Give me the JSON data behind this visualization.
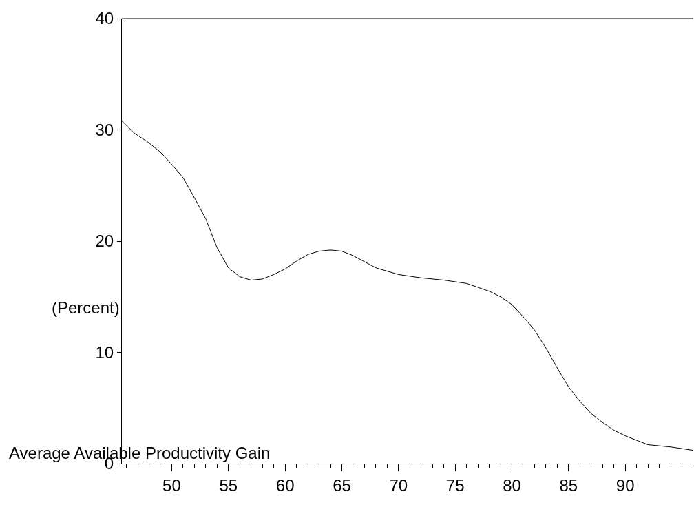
{
  "chart_data": {
    "type": "line",
    "title": "Average Available Productivity Gain",
    "ylabel": "(Percent)",
    "x": [
      45.6,
      46.7,
      47.9,
      49,
      50,
      51,
      52,
      53,
      54,
      55,
      56,
      57,
      58,
      59,
      60,
      61,
      62,
      63,
      64,
      65,
      66,
      68,
      70,
      72,
      74,
      76,
      78,
      79,
      80,
      81,
      82,
      83,
      84,
      85,
      86,
      87,
      88,
      89,
      90,
      92,
      94,
      96
    ],
    "series": [
      {
        "color": "#000000",
        "values": [
          30.8,
          29.7,
          28.9,
          28.0,
          26.9,
          25.7,
          23.9,
          22.0,
          19.4,
          17.6,
          16.8,
          16.5,
          16.6,
          17.0,
          17.5,
          18.2,
          18.8,
          19.1,
          19.2,
          19.1,
          18.7,
          17.6,
          17.0,
          16.7,
          16.5,
          16.2,
          15.5,
          15.0,
          14.3,
          13.2,
          12.0,
          10.4,
          8.6,
          6.9,
          5.6,
          4.5,
          3.7,
          3.0,
          2.5,
          1.7,
          1.5,
          1.2
        ]
      }
    ],
    "xlim": [
      45.6,
      96
    ],
    "ylim": [
      0,
      40
    ],
    "xticks": [
      {
        "value": 46,
        "label": null
      },
      {
        "value": 47,
        "label": null
      },
      {
        "value": 48,
        "label": null
      },
      {
        "value": 49,
        "label": null
      },
      50,
      {
        "value": 51,
        "label": null
      },
      {
        "value": 52,
        "label": null
      },
      {
        "value": 53,
        "label": null
      },
      {
        "value": 54,
        "label": null
      },
      55,
      {
        "value": 56,
        "label": null
      },
      {
        "value": 57,
        "label": null
      },
      {
        "value": 58,
        "label": null
      },
      {
        "value": 59,
        "label": null
      },
      60,
      {
        "value": 61,
        "label": null
      },
      {
        "value": 62,
        "label": null
      },
      {
        "value": 63,
        "label": null
      },
      {
        "value": 64,
        "label": null
      },
      65,
      {
        "value": 66,
        "label": null
      },
      {
        "value": 67,
        "label": null
      },
      {
        "value": 68,
        "label": null
      },
      {
        "value": 69,
        "label": null
      },
      70,
      {
        "value": 71,
        "label": null
      },
      {
        "value": 72,
        "label": null
      },
      {
        "value": 73,
        "label": null
      },
      {
        "value": 74,
        "label": null
      },
      75,
      {
        "value": 76,
        "label": null
      },
      {
        "value": 77,
        "label": null
      },
      {
        "value": 78,
        "label": null
      },
      {
        "value": 79,
        "label": null
      },
      80,
      {
        "value": 81,
        "label": null
      },
      {
        "value": 82,
        "label": null
      },
      {
        "value": 83,
        "label": null
      },
      {
        "value": 84,
        "label": null
      },
      85,
      {
        "value": 86,
        "label": null
      },
      {
        "value": 87,
        "label": null
      },
      {
        "value": 88,
        "label": null
      },
      {
        "value": 89,
        "label": null
      },
      90,
      {
        "value": 91,
        "label": null
      },
      {
        "value": 92,
        "label": null
      },
      {
        "value": 93,
        "label": null
      },
      {
        "value": 94,
        "label": null
      },
      {
        "value": 95,
        "label": null
      }
    ],
    "yticks": [
      0,
      10,
      20,
      30,
      40
    ],
    "marker": "none",
    "line_style": "solid"
  }
}
